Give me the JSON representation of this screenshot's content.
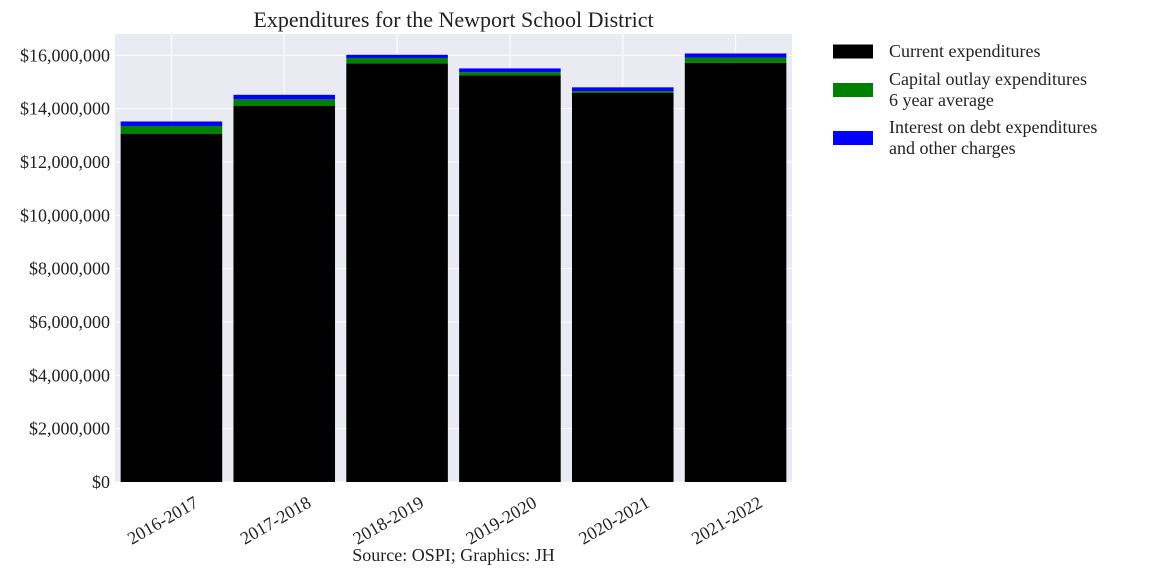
{
  "chart_data": {
    "type": "bar",
    "stacked": true,
    "title": "Expenditures for the Newport School District",
    "caption": "Source: OSPI; Graphics: JH",
    "xlabel": "",
    "ylabel": "",
    "categories": [
      "2016-2017",
      "2017-2018",
      "2018-2019",
      "2019-2020",
      "2020-2021",
      "2021-2022"
    ],
    "ylim": [
      0,
      16800000
    ],
    "yticks": [
      0,
      2000000,
      4000000,
      6000000,
      8000000,
      10000000,
      12000000,
      14000000,
      16000000
    ],
    "ytick_labels": [
      "$0",
      "$2,000,000",
      "$4,000,000",
      "$6,000,000",
      "$8,000,000",
      "$10,000,000",
      "$12,000,000",
      "$14,000,000",
      "$16,000,000"
    ],
    "grid": true,
    "legend_position": "outside-right",
    "series": [
      {
        "name": "Current expenditures",
        "color": "#000000",
        "values": [
          13050000,
          14100000,
          15700000,
          15250000,
          14600000,
          15720000
        ]
      },
      {
        "name": "Capital outlay expenditures\n6 year average",
        "color": "#008000",
        "values": [
          300000,
          250000,
          200000,
          120000,
          60000,
          200000
        ]
      },
      {
        "name": "Interest on debt expenditures\nand other charges",
        "color": "#0000ff",
        "values": [
          170000,
          170000,
          120000,
          140000,
          140000,
          150000
        ]
      }
    ]
  }
}
